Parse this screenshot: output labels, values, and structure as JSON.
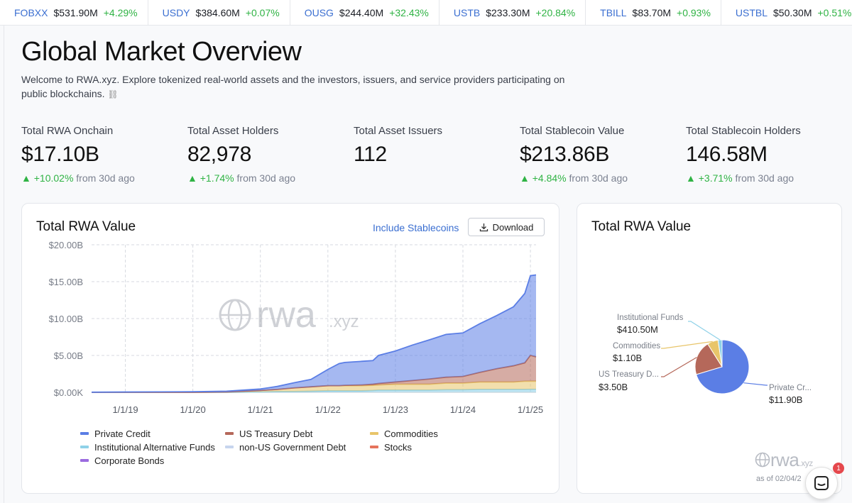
{
  "ticker": [
    {
      "symbol": "FOBXX",
      "value": "$531.90M",
      "change": "+4.29%"
    },
    {
      "symbol": "USDY",
      "value": "$384.60M",
      "change": "+0.07%"
    },
    {
      "symbol": "OUSG",
      "value": "$244.40M",
      "change": "+32.43%"
    },
    {
      "symbol": "USTB",
      "value": "$233.30M",
      "change": "+20.84%"
    },
    {
      "symbol": "TBILL",
      "value": "$83.70M",
      "change": "+0.93%"
    },
    {
      "symbol": "USTBL",
      "value": "$50.30M",
      "change": "+0.51%"
    }
  ],
  "header": {
    "title": "Global Market Overview",
    "description": "Welcome to RWA.xyz. Explore tokenized real-world assets and the investors, issuers, and service providers participating on public blockchains."
  },
  "stats": [
    {
      "label": "Total RWA Onchain",
      "value": "$17.10B",
      "change": "▲ +10.02%",
      "suffix": "from 30d ago"
    },
    {
      "label": "Total Asset Holders",
      "value": "82,978",
      "change": "▲ +1.74%",
      "suffix": "from 30d ago"
    },
    {
      "label": "Total Asset Issuers",
      "value": "112",
      "change": "",
      "suffix": ""
    },
    {
      "label": "Total Stablecoin Value",
      "value": "$213.86B",
      "change": "▲ +4.84%",
      "suffix": "from 30d ago"
    },
    {
      "label": "Total Stablecoin Holders",
      "value": "146.58M",
      "change": "▲ +3.71%",
      "suffix": "from 30d ago"
    }
  ],
  "area_card": {
    "title": "Total RWA Value",
    "stablecoin_toggle": "Include Stablecoins",
    "download_label": "Download",
    "watermark": "rwa",
    "watermark_suffix": ".xyz"
  },
  "pie_card": {
    "title": "Total RWA Value",
    "watermark": "rwa",
    "watermark_suffix": ".xyz",
    "as_of": "as of 02/04/2"
  },
  "chat": {
    "badge": "1"
  },
  "colors": {
    "up": "#2fb344",
    "link": "#3b6fd1",
    "private_credit": "#5b7ee5",
    "us_treasury": "#b5685a",
    "commodities": "#e8c56a",
    "inst_funds": "#8fd1e8",
    "non_us_gov": "#c7d5ee",
    "stocks": "#e5735c",
    "corp_bonds": "#9b6bdf"
  },
  "chart_data": [
    {
      "type": "area",
      "title": "Total RWA Value",
      "x": [
        "2018-07",
        "2019-01",
        "2019-07",
        "2020-01",
        "2020-07",
        "2021-01",
        "2021-04",
        "2021-07",
        "2021-10",
        "2022-01",
        "2022-03",
        "2022-04",
        "2022-07",
        "2022-09",
        "2022-10",
        "2023-01",
        "2023-04",
        "2023-07",
        "2023-10",
        "2024-01",
        "2024-04",
        "2024-07",
        "2024-10",
        "2024-12",
        "2025-01",
        "2025-02"
      ],
      "x_tick_labels": [
        "1/1/19",
        "1/1/20",
        "1/1/21",
        "1/1/22",
        "1/1/23",
        "1/1/24",
        "1/1/25"
      ],
      "y_tick_labels": [
        "$0.00K",
        "$5.00B",
        "$10.00B",
        "$15.00B",
        "$20.00B"
      ],
      "ylim": [
        0,
        20
      ],
      "y_unit": "B",
      "stacked": true,
      "series": [
        {
          "name": "Private Credit",
          "color": "#5b7ee5",
          "values": [
            0.02,
            0.04,
            0.06,
            0.08,
            0.1,
            0.2,
            0.4,
            0.7,
            1.0,
            2.2,
            3.0,
            3.1,
            3.2,
            3.2,
            3.8,
            4.2,
            4.8,
            5.3,
            5.8,
            5.9,
            6.6,
            7.2,
            8.0,
            9.4,
            10.8,
            11.1
          ]
        },
        {
          "name": "US Treasury Debt",
          "color": "#b5685a",
          "values": [
            0,
            0,
            0,
            0,
            0,
            0,
            0,
            0,
            0,
            0,
            0,
            0.05,
            0.1,
            0.15,
            0.2,
            0.3,
            0.5,
            0.7,
            0.8,
            0.9,
            1.3,
            1.8,
            2.2,
            2.5,
            3.5,
            3.3
          ]
        },
        {
          "name": "Commodities",
          "color": "#e8c56a",
          "values": [
            0,
            0,
            0,
            0,
            0.05,
            0.2,
            0.3,
            0.5,
            0.6,
            0.7,
            0.7,
            0.7,
            0.7,
            0.7,
            0.7,
            0.8,
            0.8,
            0.8,
            0.9,
            0.9,
            1.0,
            1.0,
            1.0,
            1.1,
            1.1,
            1.1
          ]
        },
        {
          "name": "Institutional Alternative Funds",
          "color": "#8fd1e8",
          "values": [
            0,
            0,
            0,
            0,
            0,
            0.05,
            0.1,
            0.1,
            0.15,
            0.2,
            0.2,
            0.2,
            0.2,
            0.25,
            0.3,
            0.3,
            0.3,
            0.3,
            0.35,
            0.35,
            0.4,
            0.4,
            0.4,
            0.4,
            0.41,
            0.41
          ]
        },
        {
          "name": "non-US Government Debt",
          "color": "#c7d5ee",
          "values": [
            0,
            0,
            0,
            0,
            0,
            0,
            0,
            0,
            0,
            0,
            0,
            0,
            0,
            0,
            0,
            0,
            0,
            0,
            0,
            0,
            0,
            0,
            0,
            0,
            0,
            0
          ]
        },
        {
          "name": "Stocks",
          "color": "#e5735c",
          "values": [
            0,
            0,
            0,
            0,
            0,
            0,
            0,
            0,
            0,
            0,
            0,
            0,
            0,
            0,
            0,
            0,
            0,
            0,
            0,
            0,
            0,
            0,
            0,
            0,
            0,
            0
          ]
        },
        {
          "name": "Corporate Bonds",
          "color": "#9b6bdf",
          "values": [
            0,
            0,
            0,
            0,
            0,
            0,
            0,
            0,
            0,
            0,
            0,
            0,
            0,
            0,
            0,
            0,
            0,
            0,
            0,
            0,
            0,
            0,
            0,
            0,
            0,
            0
          ]
        }
      ],
      "legend": "bottom",
      "grid": true
    },
    {
      "type": "pie",
      "title": "Total RWA Value",
      "slices": [
        {
          "name": "Private Cr...",
          "value": 11.9,
          "label": "$11.90B",
          "color": "#5b7ee5"
        },
        {
          "name": "US Treasury D...",
          "value": 3.5,
          "label": "$3.50B",
          "color": "#b5685a"
        },
        {
          "name": "Commodities",
          "value": 1.1,
          "label": "$1.10B",
          "color": "#e8c56a"
        },
        {
          "name": "Institutional Funds",
          "value": 0.4105,
          "label": "$410.50M",
          "color": "#8fd1e8"
        }
      ]
    }
  ]
}
